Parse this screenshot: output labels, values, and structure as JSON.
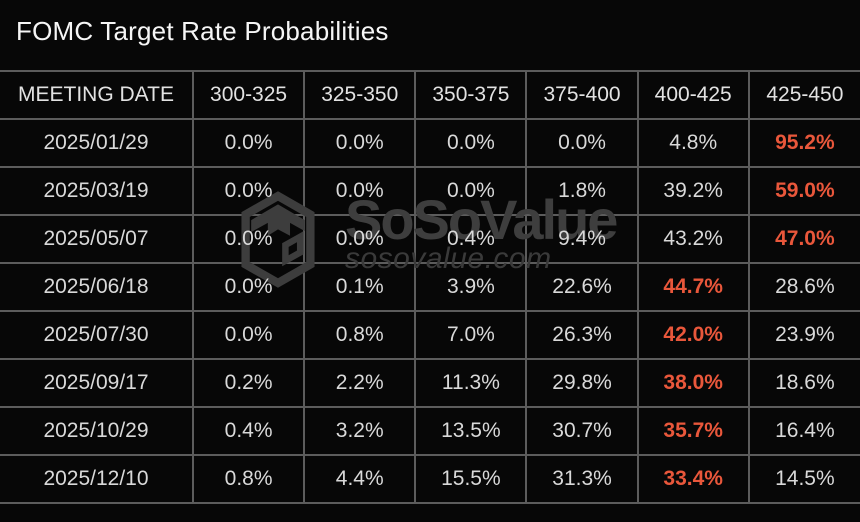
{
  "title": "FOMC Target Rate Probabilities",
  "watermark": {
    "brand": "SoSoValue",
    "domain": "sosovalue.com",
    "logo_icon": "sosovalue-cube-logo-icon"
  },
  "colors": {
    "background": "#070707",
    "grid_line": "#5c5c5c",
    "text": "#d9d9d9",
    "title_text": "#f6f6f6",
    "highlight_text": "#e9573b",
    "watermark_text": "#3d3d3d"
  },
  "chart_data": {
    "type": "table",
    "title": "FOMC Target Rate Probabilities",
    "columns": [
      "MEETING DATE",
      "300-325",
      "325-350",
      "350-375",
      "375-400",
      "400-425",
      "425-450"
    ],
    "rows": [
      {
        "cells": [
          "2025/01/29",
          "0.0%",
          "0.0%",
          "0.0%",
          "0.0%",
          "4.8%",
          "95.2%"
        ],
        "highlight": 6
      },
      {
        "cells": [
          "2025/03/19",
          "0.0%",
          "0.0%",
          "0.0%",
          "1.8%",
          "39.2%",
          "59.0%"
        ],
        "highlight": 6
      },
      {
        "cells": [
          "2025/05/07",
          "0.0%",
          "0.0%",
          "0.4%",
          "9.4%",
          "43.2%",
          "47.0%"
        ],
        "highlight": 6
      },
      {
        "cells": [
          "2025/06/18",
          "0.0%",
          "0.1%",
          "3.9%",
          "22.6%",
          "44.7%",
          "28.6%"
        ],
        "highlight": 5
      },
      {
        "cells": [
          "2025/07/30",
          "0.0%",
          "0.8%",
          "7.0%",
          "26.3%",
          "42.0%",
          "23.9%"
        ],
        "highlight": 5
      },
      {
        "cells": [
          "2025/09/17",
          "0.2%",
          "2.2%",
          "11.3%",
          "29.8%",
          "38.0%",
          "18.6%"
        ],
        "highlight": 5
      },
      {
        "cells": [
          "2025/10/29",
          "0.4%",
          "3.2%",
          "13.5%",
          "30.7%",
          "35.7%",
          "16.4%"
        ],
        "highlight": 5
      },
      {
        "cells": [
          "2025/12/10",
          "0.8%",
          "4.4%",
          "15.5%",
          "31.3%",
          "33.4%",
          "14.5%"
        ],
        "highlight": 5
      }
    ]
  }
}
